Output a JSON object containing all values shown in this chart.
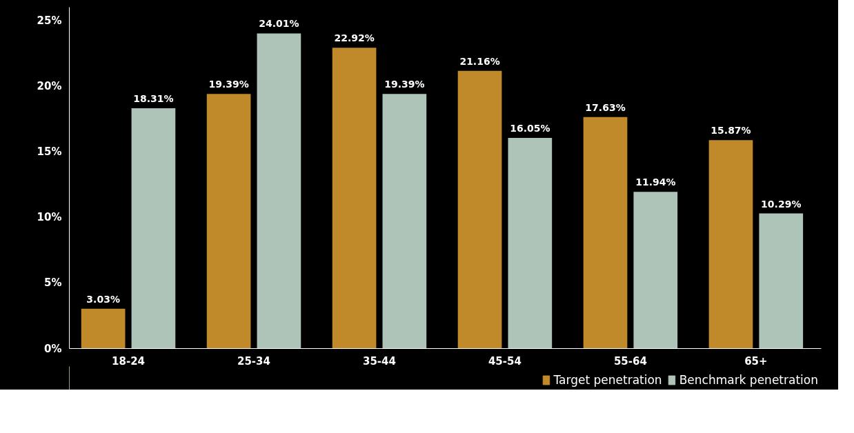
{
  "chart_data": {
    "type": "bar",
    "categories": [
      "18-24",
      "25-34",
      "35-44",
      "45-54",
      "55-64",
      "65+"
    ],
    "series": [
      {
        "name": "Target penetration",
        "color": "#c08a2b",
        "values": [
          3.03,
          19.39,
          22.92,
          21.16,
          17.63,
          15.87
        ],
        "value_labels": [
          "3.03%",
          "19.39%",
          "22.92%",
          "21.16%",
          "17.63%",
          "15.87%"
        ]
      },
      {
        "name": "Benchmark penetration",
        "color": "#aec4b8",
        "values": [
          18.31,
          24.01,
          19.39,
          16.05,
          11.94,
          10.29
        ],
        "value_labels": [
          "18.31%",
          "24.01%",
          "19.39%",
          "16.05%",
          "11.94%",
          "10.29%"
        ]
      }
    ],
    "ylim": [
      0,
      26
    ],
    "yticks": [
      {
        "value": 0,
        "label": "0%"
      },
      {
        "value": 5,
        "label": "5%"
      },
      {
        "value": 10,
        "label": "10%"
      },
      {
        "value": 15,
        "label": "15%"
      },
      {
        "value": 20,
        "label": "20%"
      },
      {
        "value": 25,
        "label": "25%"
      }
    ],
    "grid": false,
    "legend": "bottom right"
  }
}
